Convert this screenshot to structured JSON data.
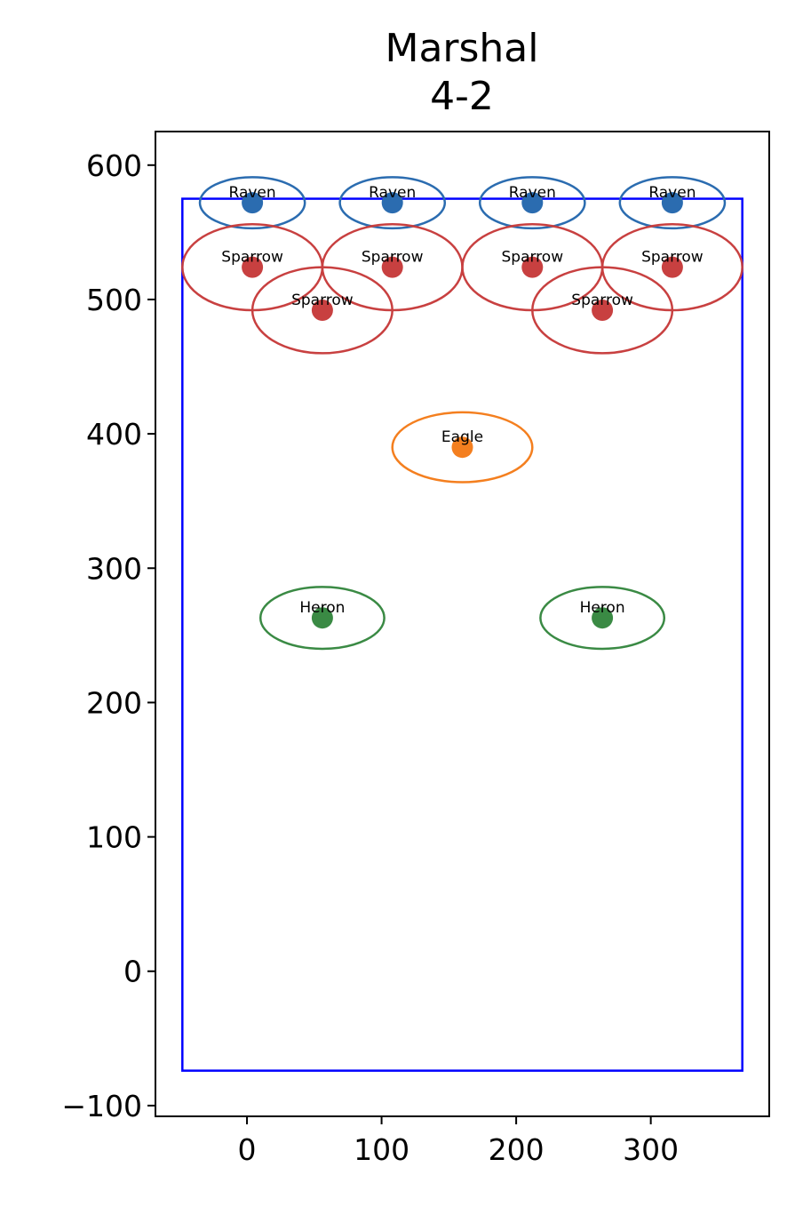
{
  "chart_data": {
    "type": "scatter",
    "title_lines": [
      "Marshal",
      "4-2"
    ],
    "xlabel": "",
    "ylabel": "",
    "xlim": [
      -68,
      388
    ],
    "ylim": [
      -108,
      625
    ],
    "xticks": [
      0,
      100,
      200,
      300
    ],
    "yticks": [
      -100,
      0,
      100,
      200,
      300,
      400,
      500,
      600
    ],
    "xtick_labels": [
      "0",
      "100",
      "200",
      "300"
    ],
    "ytick_labels": [
      "−100",
      "0",
      "100",
      "200",
      "300",
      "400",
      "500",
      "600"
    ],
    "grid": false,
    "legend": "none",
    "boundary": {
      "x": [
        -48,
        368
      ],
      "y": [
        -74,
        575
      ],
      "color": "#0000ff"
    },
    "points": [
      {
        "label": "Raven",
        "x": 4,
        "y": 572,
        "rx": 39,
        "ry": 19,
        "color": "#2b6cb0"
      },
      {
        "label": "Raven",
        "x": 108,
        "y": 572,
        "rx": 39,
        "ry": 19,
        "color": "#2b6cb0"
      },
      {
        "label": "Raven",
        "x": 212,
        "y": 572,
        "rx": 39,
        "ry": 19,
        "color": "#2b6cb0"
      },
      {
        "label": "Raven",
        "x": 316,
        "y": 572,
        "rx": 39,
        "ry": 19,
        "color": "#2b6cb0"
      },
      {
        "label": "Sparrow",
        "x": 4,
        "y": 524,
        "rx": 52,
        "ry": 32,
        "color": "#c84040"
      },
      {
        "label": "Sparrow",
        "x": 108,
        "y": 524,
        "rx": 52,
        "ry": 32,
        "color": "#c84040"
      },
      {
        "label": "Sparrow",
        "x": 212,
        "y": 524,
        "rx": 52,
        "ry": 32,
        "color": "#c84040"
      },
      {
        "label": "Sparrow",
        "x": 316,
        "y": 524,
        "rx": 52,
        "ry": 32,
        "color": "#c84040"
      },
      {
        "label": "Sparrow",
        "x": 56,
        "y": 492,
        "rx": 52,
        "ry": 32,
        "color": "#c84040"
      },
      {
        "label": "Sparrow",
        "x": 264,
        "y": 492,
        "rx": 52,
        "ry": 32,
        "color": "#c84040"
      },
      {
        "label": "Eagle",
        "x": 160,
        "y": 390,
        "rx": 52,
        "ry": 26,
        "color": "#f47f1f"
      },
      {
        "label": "Heron",
        "x": 56,
        "y": 263,
        "rx": 46,
        "ry": 23,
        "color": "#3a8a44"
      },
      {
        "label": "Heron",
        "x": 264,
        "y": 263,
        "rx": 46,
        "ry": 23,
        "color": "#3a8a44"
      }
    ]
  }
}
